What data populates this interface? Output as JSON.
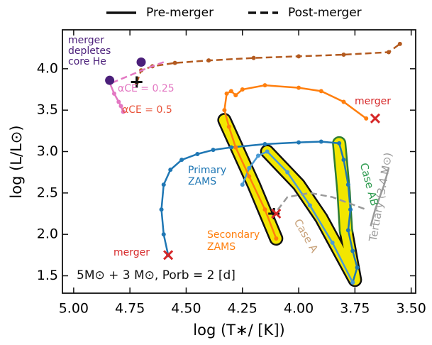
{
  "chart_data": {
    "type": "line",
    "xlabel": "log  (T∗/ [K])",
    "ylabel": "log  (L/L⊙)",
    "xlim": [
      5.05,
      3.48
    ],
    "ylim": [
      1.29,
      4.47
    ],
    "xticks": [
      {
        "value": 5.0,
        "label": "5.00"
      },
      {
        "value": 4.75,
        "label": "4.75"
      },
      {
        "value": 4.5,
        "label": "4.50"
      },
      {
        "value": 4.25,
        "label": "4.25"
      },
      {
        "value": 4.0,
        "label": "4.00"
      },
      {
        "value": 3.75,
        "label": "3.75"
      },
      {
        "value": 3.5,
        "label": "3.50"
      }
    ],
    "yticks": [
      1.5,
      {
        "value": 2.0,
        "label": "2.0"
      },
      2.5,
      {
        "value": 3.0,
        "label": "3.0"
      },
      3.5,
      {
        "value": 4.0,
        "label": "4.0"
      }
    ],
    "legend": [
      {
        "label": "Pre-merger",
        "style": "solid"
      },
      {
        "label": "Post-merger",
        "style": "dashed"
      }
    ],
    "bands": [
      {
        "outline": "#111111",
        "x": [
          4.33,
          4.3,
          4.27,
          4.2,
          4.1
        ],
        "y": [
          3.38,
          3.2,
          3.02,
          2.6,
          1.95
        ]
      },
      {
        "outline": "#111111",
        "x": [
          4.14,
          4.0,
          3.9,
          3.75,
          3.79
        ],
        "y": [
          3.0,
          2.6,
          2.2,
          1.45,
          2.05
        ]
      },
      {
        "outline": "#2e7d32",
        "x": [
          3.79,
          3.8,
          3.82
        ],
        "y": [
          2.05,
          2.5,
          3.1
        ]
      }
    ],
    "series": [
      {
        "color": "#1f77b4",
        "style": "solid",
        "dots": true,
        "x": [
          4.58,
          4.6,
          4.61,
          4.6,
          4.57,
          4.52,
          4.45,
          4.38,
          4.3,
          4.15,
          4.0,
          3.9,
          3.82,
          3.8,
          3.78,
          3.77,
          3.78,
          3.76,
          3.74,
          3.76
        ],
        "y": [
          1.75,
          2.0,
          2.3,
          2.6,
          2.78,
          2.9,
          2.97,
          3.02,
          3.05,
          3.09,
          3.11,
          3.12,
          3.1,
          2.9,
          2.6,
          2.3,
          2.05,
          1.8,
          1.6,
          1.42
        ]
      },
      {
        "color": "#4a9ad4",
        "style": "solid",
        "dots": true,
        "x": [
          3.76,
          3.85,
          3.95,
          4.05,
          4.14,
          4.18,
          4.22,
          4.25
        ],
        "y": [
          1.42,
          1.9,
          2.35,
          2.75,
          3.0,
          2.95,
          2.8,
          2.6
        ]
      },
      {
        "color": "#ff7f0e",
        "style": "solid",
        "dots": true,
        "x": [
          4.1,
          4.15,
          4.22,
          4.28,
          4.31,
          4.33,
          4.32,
          4.3,
          4.28,
          4.25,
          4.15,
          4.0,
          3.9,
          3.8,
          3.7
        ],
        "y": [
          1.95,
          2.3,
          2.7,
          3.05,
          3.3,
          3.5,
          3.7,
          3.73,
          3.68,
          3.75,
          3.8,
          3.77,
          3.73,
          3.6,
          3.4
        ]
      },
      {
        "color": "#b35a1f",
        "style": "dashed",
        "dots": true,
        "x": [
          4.72,
          4.7,
          4.65,
          4.55,
          4.4,
          4.2,
          4.0,
          3.8,
          3.6,
          3.55
        ],
        "y": [
          3.83,
          3.98,
          4.03,
          4.07,
          4.1,
          4.13,
          4.15,
          4.17,
          4.2,
          4.3
        ]
      },
      {
        "color": "#e377c2",
        "style": "dashed",
        "dots": false,
        "x": [
          4.83,
          4.75,
          4.68,
          4.6
        ],
        "y": [
          3.83,
          3.92,
          4.0,
          4.08
        ]
      },
      {
        "color": "#e377c2",
        "style": "solid",
        "dots": true,
        "x": [
          4.84,
          4.82,
          4.8,
          4.79,
          4.78
        ],
        "y": [
          3.83,
          3.7,
          3.6,
          3.55,
          3.48
        ]
      },
      {
        "color": "#999999",
        "style": "dashed",
        "dots": false,
        "x": [
          4.12,
          4.05,
          3.95,
          3.85,
          3.7
        ],
        "y": [
          2.2,
          2.45,
          2.5,
          2.45,
          2.3
        ]
      },
      {
        "color": "#999999",
        "style": "solid",
        "dots": false,
        "x": [
          3.68,
          3.66,
          3.64,
          3.62,
          3.6
        ],
        "y": [
          2.1,
          2.3,
          2.45,
          2.6,
          2.8
        ]
      }
    ],
    "markers": [
      {
        "symbol": "circle",
        "color": "#4b1f7a",
        "x": 4.84,
        "y": 3.86
      },
      {
        "symbol": "circle",
        "color": "#4b1f7a",
        "x": 4.7,
        "y": 4.08
      },
      {
        "symbol": "plus",
        "color": "#111111",
        "x": 4.72,
        "y": 3.84
      },
      {
        "symbol": "plus",
        "color": "#111111",
        "x": 4.11,
        "y": 2.25
      },
      {
        "symbol": "cross",
        "color": "#d62728",
        "x": 4.58,
        "y": 1.75
      },
      {
        "symbol": "cross",
        "color": "#d62728",
        "x": 3.66,
        "y": 3.4
      },
      {
        "symbol": "cross",
        "color": "#d62728",
        "x": 4.1,
        "y": 2.25
      }
    ],
    "annotations": [
      {
        "text": "merger",
        "color": "#4b1f7a"
      },
      {
        "text": "depletes",
        "color": "#4b1f7a"
      },
      {
        "text": "core He",
        "color": "#4b1f7a"
      },
      {
        "text": "αCE = 0.25",
        "color": "#e377c2"
      },
      {
        "text": "αCE = 0.5",
        "color": "#e8533a"
      },
      {
        "text": "merger",
        "color": "#d62728"
      },
      {
        "text": "merger",
        "color": "#d62728"
      },
      {
        "text": "Primary",
        "color": "#1f77b4"
      },
      {
        "text": "ZAMS",
        "color": "#1f77b4"
      },
      {
        "text": "Secondary",
        "color": "#ff7f0e"
      },
      {
        "text": "ZAMS",
        "color": "#ff7f0e"
      },
      {
        "text": "Case  AB",
        "color": "#2e9b4f"
      },
      {
        "text": "Case  A",
        "color": "#c8a27a"
      },
      {
        "text": "Tertiary  (3.4 M⊙)",
        "color": "#999999"
      },
      {
        "text": "5M⊙ + 3 M⊙, Porb  = 2  [d]",
        "color": "#111111"
      }
    ]
  }
}
